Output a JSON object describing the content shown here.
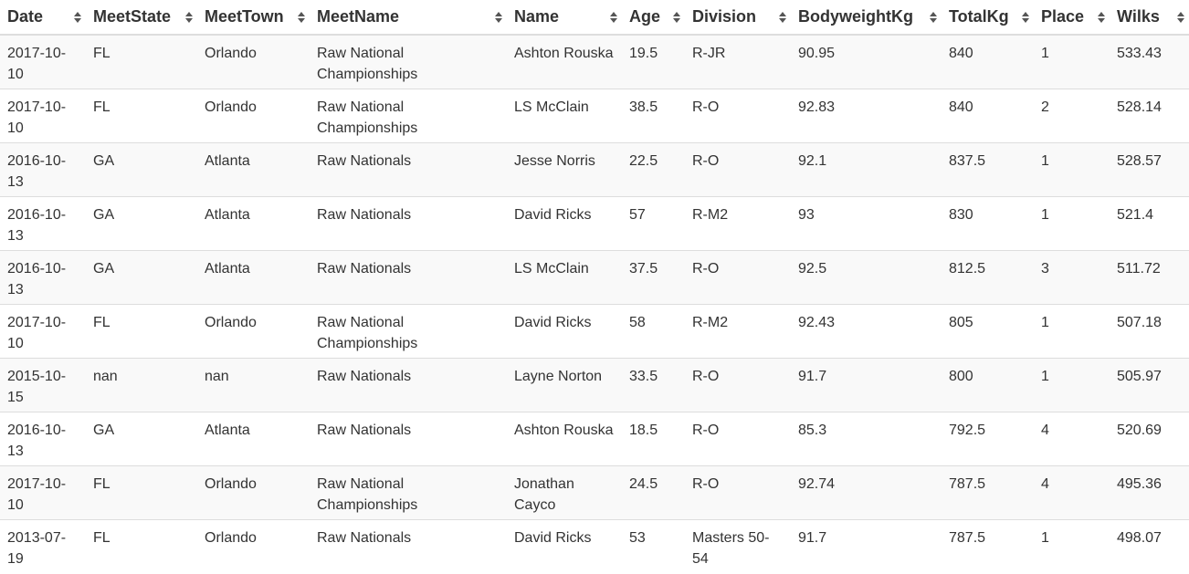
{
  "table": {
    "columns": [
      "Date",
      "MeetState",
      "MeetTown",
      "MeetName",
      "Name",
      "Age",
      "Division",
      "BodyweightKg",
      "TotalKg",
      "Place",
      "Wilks"
    ],
    "rows": [
      [
        "2017-10-10",
        "FL",
        "Orlando",
        "Raw National Championships",
        "Ashton Rouska",
        "19.5",
        "R-JR",
        "90.95",
        "840",
        "1",
        "533.43"
      ],
      [
        "2017-10-10",
        "FL",
        "Orlando",
        "Raw National Championships",
        "LS McClain",
        "38.5",
        "R-O",
        "92.83",
        "840",
        "2",
        "528.14"
      ],
      [
        "2016-10-13",
        "GA",
        "Atlanta",
        "Raw Nationals",
        "Jesse Norris",
        "22.5",
        "R-O",
        "92.1",
        "837.5",
        "1",
        "528.57"
      ],
      [
        "2016-10-13",
        "GA",
        "Atlanta",
        "Raw Nationals",
        "David Ricks",
        "57",
        "R-M2",
        "93",
        "830",
        "1",
        "521.4"
      ],
      [
        "2016-10-13",
        "GA",
        "Atlanta",
        "Raw Nationals",
        "LS McClain",
        "37.5",
        "R-O",
        "92.5",
        "812.5",
        "3",
        "511.72"
      ],
      [
        "2017-10-10",
        "FL",
        "Orlando",
        "Raw National Championships",
        "David Ricks",
        "58",
        "R-M2",
        "92.43",
        "805",
        "1",
        "507.18"
      ],
      [
        "2015-10-15",
        "nan",
        "nan",
        "Raw Nationals",
        "Layne Norton",
        "33.5",
        "R-O",
        "91.7",
        "800",
        "1",
        "505.97"
      ],
      [
        "2016-10-13",
        "GA",
        "Atlanta",
        "Raw Nationals",
        "Ashton Rouska",
        "18.5",
        "R-O",
        "85.3",
        "792.5",
        "4",
        "520.69"
      ],
      [
        "2017-10-10",
        "FL",
        "Orlando",
        "Raw National Championships",
        "Jonathan Cayco",
        "24.5",
        "R-O",
        "92.74",
        "787.5",
        "4",
        "495.36"
      ],
      [
        "2013-07-19",
        "FL",
        "Orlando",
        "Raw Nationals",
        "David Ricks",
        "53",
        "Masters 50-54",
        "91.7",
        "787.5",
        "1",
        "498.07"
      ]
    ]
  }
}
